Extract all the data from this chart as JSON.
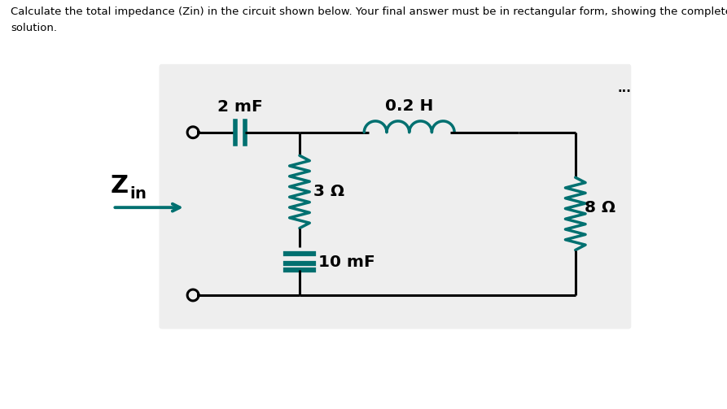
{
  "title_line1": "Calculate the total impedance (Zin) in the circuit shown below. Your final answer must be in rectangular form, showing the complete",
  "title_line2": "solution.",
  "title_fontsize": 9.5,
  "bg_circuit": "#f0f0f0",
  "bg_outer": "#ffffff",
  "lc": "#000000",
  "cc": "#007070",
  "label_2mF": "2 mF",
  "label_02H": "0.2 H",
  "label_3ohm": "3 Ω",
  "label_8ohm": "8 Ω",
  "label_10mF": "10 mF",
  "dots_text": "...",
  "arrow_color": "#007070",
  "figsize": [
    8.93,
    5.03
  ],
  "dpi": 100
}
